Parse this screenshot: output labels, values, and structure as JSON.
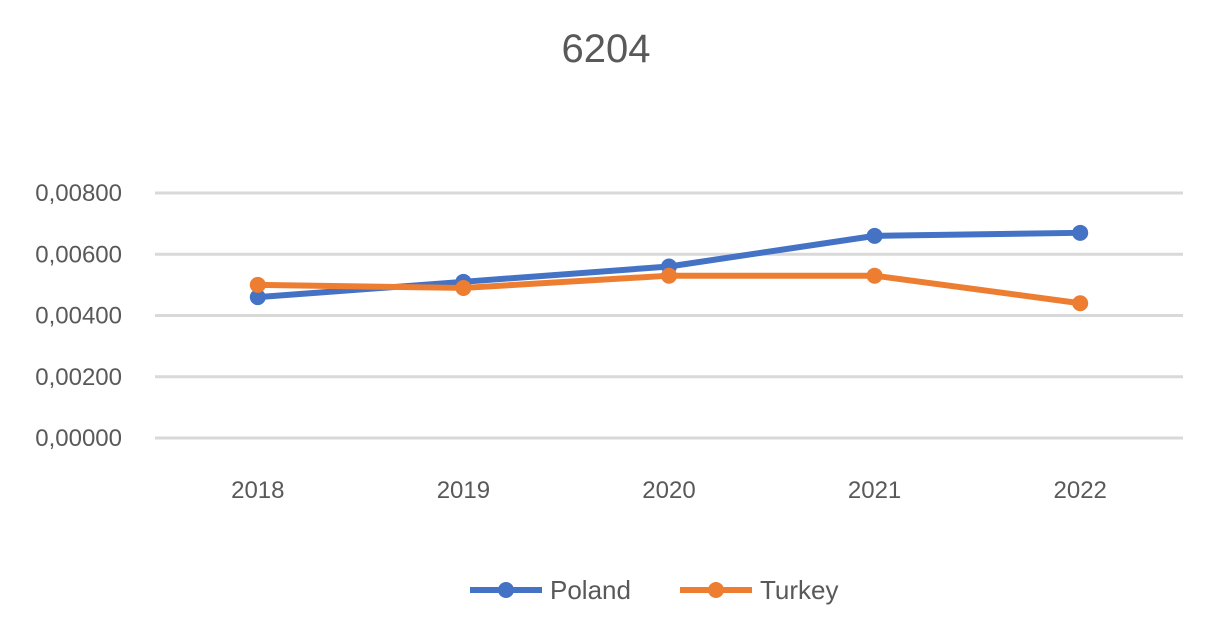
{
  "chart_data": {
    "type": "line",
    "title": "6204",
    "categories": [
      "2018",
      "2019",
      "2020",
      "2021",
      "2022"
    ],
    "y_tick_labels": [
      "0,00800",
      "0,00600",
      "0,00400",
      "0,00200",
      "0,00000"
    ],
    "y_ticks": [
      0.008,
      0.006,
      0.004,
      0.002,
      0.0
    ],
    "ylim": [
      0,
      0.008
    ],
    "grid": true,
    "legend_position": "bottom",
    "series": [
      {
        "name": "Poland",
        "color": "#4472c4",
        "values": [
          0.0046,
          0.0051,
          0.0056,
          0.0066,
          0.0067
        ]
      },
      {
        "name": "Turkey",
        "color": "#ed7d31",
        "values": [
          0.005,
          0.0049,
          0.0053,
          0.0053,
          0.0044
        ]
      }
    ]
  }
}
